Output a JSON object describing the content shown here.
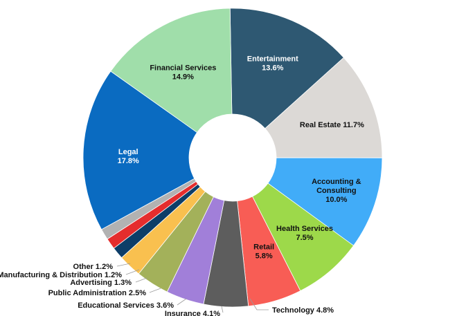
{
  "chart_data": {
    "type": "pie",
    "donut": true,
    "title": "",
    "legend": "none",
    "start_angle_deg": -91,
    "direction": "clockwise",
    "slices": [
      {
        "name": "Entertainment",
        "value": 13.6,
        "label": [
          "Entertainment",
          "13.6%"
        ],
        "color": "#2e5872",
        "text_color": "#ffffff",
        "placement": "inside"
      },
      {
        "name": "Real Estate",
        "value": 11.7,
        "label": [
          "Real Estate 11.7%"
        ],
        "color": "#dcd9d6",
        "text_color": "#111111",
        "placement": "inside"
      },
      {
        "name": "Accounting & Consulting",
        "value": 10.0,
        "label": [
          "Accounting &",
          "Consulting",
          "10.0%"
        ],
        "color": "#41acf8",
        "text_color": "#111111",
        "placement": "inside"
      },
      {
        "name": "Health Services",
        "value": 7.5,
        "label": [
          "Health Services",
          "7.5%"
        ],
        "color": "#9dd94a",
        "text_color": "#111111",
        "placement": "inside"
      },
      {
        "name": "Retail",
        "value": 5.8,
        "label": [
          "Retail",
          "5.8%"
        ],
        "color": "#f85d55",
        "text_color": "#111111",
        "placement": "inside"
      },
      {
        "name": "Technology",
        "value": 4.8,
        "label": [
          "Technology 4.8%"
        ],
        "color": "#5d5d5d",
        "text_color": "#111111",
        "placement": "outside"
      },
      {
        "name": "Insurance",
        "value": 4.1,
        "label": [
          "Insurance 4.1%"
        ],
        "color": "#a17fd9",
        "text_color": "#111111",
        "placement": "outside"
      },
      {
        "name": "Educational Services",
        "value": 3.6,
        "label": [
          "Educational Services 3.6%"
        ],
        "color": "#a3b15a",
        "text_color": "#111111",
        "placement": "outside"
      },
      {
        "name": "Public Administration",
        "value": 2.5,
        "label": [
          "Public Administration 2.5%"
        ],
        "color": "#f9c04f",
        "text_color": "#111111",
        "placement": "outside"
      },
      {
        "name": "Advertising",
        "value": 1.3,
        "label": [
          "Advertising 1.3%"
        ],
        "color": "#0d3e68",
        "text_color": "#111111",
        "placement": "outside"
      },
      {
        "name": "Manufacturing & Distribution",
        "value": 1.2,
        "label": [
          "Manufacturing & Distribution 1.2%"
        ],
        "color": "#e52d2d",
        "text_color": "#111111",
        "placement": "outside"
      },
      {
        "name": "Other",
        "value": 1.2,
        "label": [
          "Other 1.2%"
        ],
        "color": "#b2b2b2",
        "text_color": "#111111",
        "placement": "outside"
      },
      {
        "name": "Legal",
        "value": 17.8,
        "label": [
          "Legal",
          "17.8%"
        ],
        "color": "#0a6bc1",
        "text_color": "#ffffff",
        "placement": "inside"
      },
      {
        "name": "Financial Services",
        "value": 14.9,
        "label": [
          "Financial Services",
          "14.9%"
        ],
        "color": "#a0deaa",
        "text_color": "#111111",
        "placement": "inside"
      }
    ]
  }
}
